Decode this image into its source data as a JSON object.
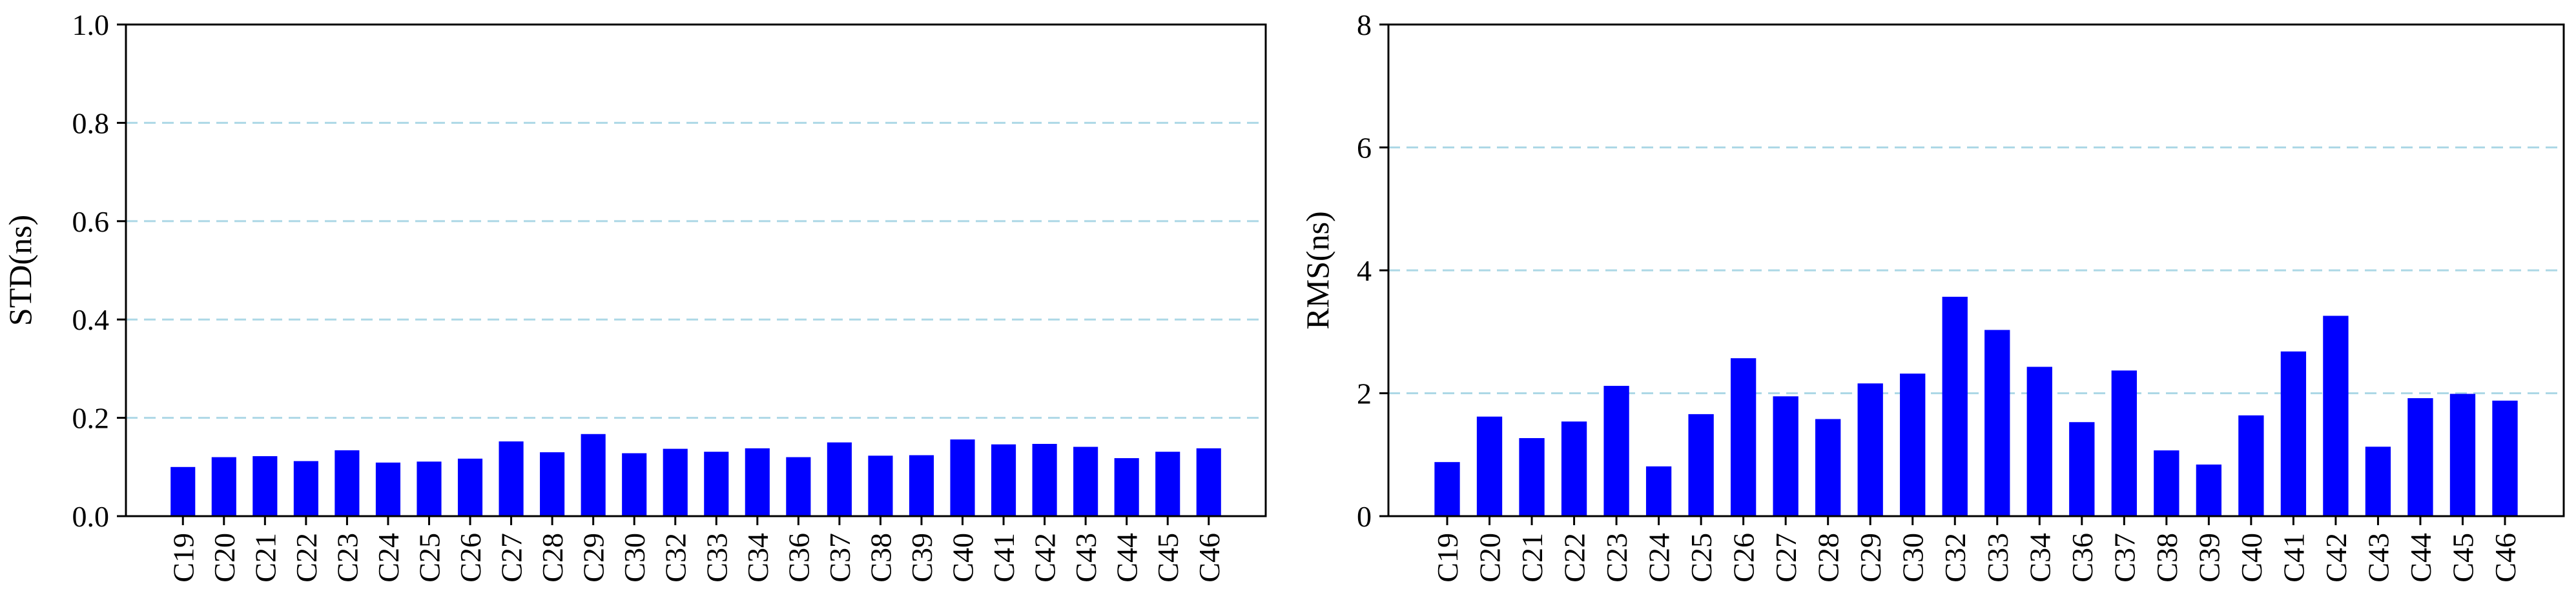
{
  "chart_data": [
    {
      "type": "bar",
      "categories": [
        "C19",
        "C20",
        "C21",
        "C22",
        "C23",
        "C24",
        "C25",
        "C26",
        "C27",
        "C28",
        "C29",
        "C30",
        "C32",
        "C33",
        "C34",
        "C36",
        "C37",
        "C38",
        "C39",
        "C40",
        "C41",
        "C42",
        "C43",
        "C44",
        "C45",
        "C46"
      ],
      "values": [
        0.1,
        0.12,
        0.122,
        0.112,
        0.134,
        0.109,
        0.111,
        0.117,
        0.152,
        0.13,
        0.167,
        0.128,
        0.137,
        0.131,
        0.138,
        0.12,
        0.15,
        0.123,
        0.124,
        0.156,
        0.146,
        0.147,
        0.141,
        0.118,
        0.131,
        0.138
      ],
      "title": "",
      "xlabel": "",
      "ylabel": "STD(ns)",
      "ylim": [
        0,
        1.0
      ],
      "yticks": [
        "0.0",
        "0.2",
        "0.4",
        "0.6",
        "0.8",
        "1.0"
      ],
      "grid": "horizontal dashed at 0.2, 0.4, 0.6, 0.8",
      "bar_color": "#0000ff",
      "grid_color": "#add8e6"
    },
    {
      "type": "bar",
      "categories": [
        "C19",
        "C20",
        "C21",
        "C22",
        "C23",
        "C24",
        "C25",
        "C26",
        "C27",
        "C28",
        "C29",
        "C30",
        "C32",
        "C33",
        "C34",
        "C36",
        "C37",
        "C38",
        "C39",
        "C40",
        "C41",
        "C42",
        "C43",
        "C44",
        "C45",
        "C46"
      ],
      "values": [
        0.88,
        1.62,
        1.27,
        1.54,
        2.12,
        0.81,
        1.66,
        2.57,
        1.95,
        1.58,
        2.16,
        2.32,
        3.57,
        3.03,
        2.43,
        1.53,
        2.37,
        1.07,
        0.84,
        1.64,
        2.68,
        3.26,
        1.13,
        1.92,
        1.99,
        1.88
      ],
      "title": "",
      "xlabel": "",
      "ylabel": "RMS(ns)",
      "ylim": [
        0,
        8
      ],
      "yticks": [
        "0",
        "2",
        "4",
        "6",
        "8"
      ],
      "grid": "horizontal dashed at 2, 4, 6",
      "bar_color": "#0000ff",
      "grid_color": "#add8e6"
    }
  ]
}
